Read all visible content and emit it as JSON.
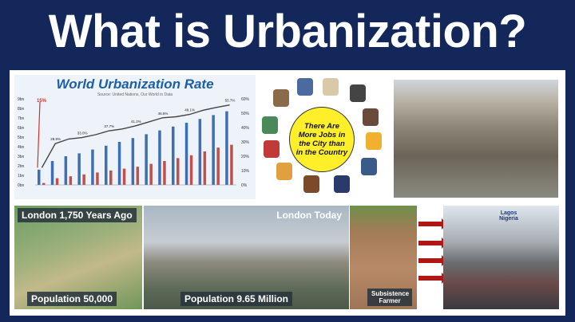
{
  "title": "What is Urbanization?",
  "chart_data": {
    "type": "bar",
    "title": "World Urbanization Rate",
    "subtitle": "Source: United Nations, Our World in Data",
    "left_axis_ticks": [
      "0bn",
      "1bn",
      "2bn",
      "3bn",
      "4bn",
      "5bn",
      "6bn",
      "7bn",
      "8bn",
      "9bn"
    ],
    "right_axis_ticks": [
      "0%",
      "10%",
      "20%",
      "30%",
      "40%",
      "50%",
      "60%"
    ],
    "ylim_left": [
      0,
      9
    ],
    "ylim_right": [
      0,
      60
    ],
    "series": [
      {
        "values": [
          1.6,
          2.5,
          3.0,
          3.3,
          3.7,
          4.1,
          4.5,
          4.9,
          5.3,
          5.7,
          6.1,
          6.5,
          6.9,
          7.3,
          7.7
        ],
        "color": "#3f6fb0"
      },
      {
        "values": [
          0.2,
          0.7,
          0.9,
          1.1,
          1.3,
          1.5,
          1.7,
          1.9,
          2.2,
          2.5,
          2.8,
          3.1,
          3.5,
          3.9,
          4.2
        ],
        "color": "#c0504d"
      }
    ],
    "line": {
      "values": [
        12,
        28.8,
        32,
        33,
        35,
        37.7,
        39,
        41.2,
        44,
        46.8,
        47.5,
        49.1,
        52,
        54,
        55.7
      ],
      "color": "#444444"
    },
    "data_labels": [
      {
        "i": 1,
        "text": "28.8%"
      },
      {
        "i": 3,
        "text": "33.0%"
      },
      {
        "i": 5,
        "text": "37.7%"
      },
      {
        "i": 7,
        "text": "41.2%"
      },
      {
        "i": 9,
        "text": "46.8%"
      },
      {
        "i": 11,
        "text": "49.1%"
      },
      {
        "i": 14,
        "text": "55.7%"
      }
    ],
    "annotation": "15%"
  },
  "jobs": {
    "text": "There Are More Jobs in the City than in the Country"
  },
  "captions": {
    "london_old_title": "London 1,750 Years Ago",
    "london_old_pop": "Population 50,000",
    "london_new_title": "London Today",
    "london_new_pop": "Population 9.65 Million",
    "farmer": "Subsistence Farmer",
    "lagos": "Lagos Nigeria"
  }
}
